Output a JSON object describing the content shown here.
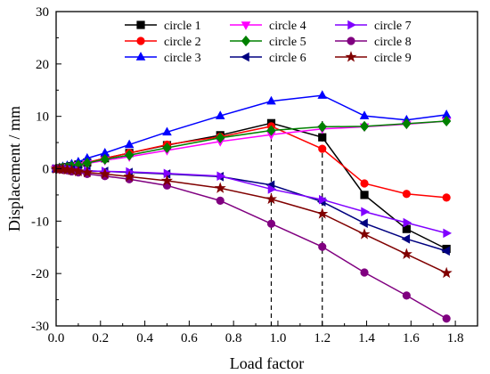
{
  "chart_data": {
    "type": "line",
    "title": "",
    "xlabel": "Load factor",
    "ylabel": "Displacement / mm",
    "xlim": [
      0.0,
      1.9
    ],
    "ylim": [
      -30,
      30
    ],
    "xticks": [
      "0.0",
      "0.2",
      "0.4",
      "0.6",
      "0.8",
      "1.0",
      "1.2",
      "1.4",
      "1.6",
      "1.8"
    ],
    "yticks": [
      "-30",
      "-20",
      "-10",
      "0",
      "10",
      "20",
      "30"
    ],
    "grid": false,
    "legend_position": "top-center",
    "reference_lines": [
      0.97,
      1.2
    ],
    "series": [
      {
        "name": "circle 1",
        "color": "#000000",
        "marker": "square",
        "x": [
          0,
          0.015,
          0.03,
          0.05,
          0.07,
          0.1,
          0.14,
          0.22,
          0.33,
          0.5,
          0.74,
          0.97,
          1.2,
          1.39,
          1.58,
          1.76
        ],
        "y": [
          0,
          0.1,
          0.2,
          0.3,
          0.5,
          0.8,
          1.2,
          2.0,
          3.0,
          4.5,
          6.4,
          8.7,
          6.0,
          -5.0,
          -11.5,
          -15.3
        ]
      },
      {
        "name": "circle 2",
        "color": "#ff0000",
        "marker": "circle",
        "x": [
          0,
          0.015,
          0.03,
          0.05,
          0.07,
          0.1,
          0.14,
          0.22,
          0.33,
          0.5,
          0.74,
          0.97,
          1.2,
          1.39,
          1.58,
          1.76
        ],
        "y": [
          0,
          0.1,
          0.2,
          0.3,
          0.5,
          0.8,
          1.2,
          2.0,
          3.0,
          4.6,
          6.1,
          8.1,
          3.8,
          -2.8,
          -4.8,
          -5.5
        ]
      },
      {
        "name": "circle 3",
        "color": "#0000ff",
        "marker": "triangle-up",
        "x": [
          0,
          0.015,
          0.03,
          0.05,
          0.07,
          0.1,
          0.14,
          0.22,
          0.33,
          0.5,
          0.74,
          0.97,
          1.2,
          1.39,
          1.58,
          1.76
        ],
        "y": [
          0,
          0.2,
          0.4,
          0.6,
          0.9,
          1.3,
          2.0,
          3.0,
          4.6,
          7.0,
          10.1,
          12.9,
          14.0,
          10.1,
          9.3,
          10.3
        ]
      },
      {
        "name": "circle 4",
        "color": "#ff00ff",
        "marker": "triangle-down",
        "x": [
          0,
          0.015,
          0.03,
          0.05,
          0.07,
          0.1,
          0.14,
          0.22,
          0.33,
          0.5,
          0.74,
          0.97,
          1.2,
          1.39,
          1.58,
          1.76
        ],
        "y": [
          0,
          0.1,
          0.2,
          0.3,
          0.4,
          0.6,
          1.0,
          1.6,
          2.3,
          3.5,
          5.2,
          6.5,
          7.6,
          8.0,
          8.5,
          9.1
        ]
      },
      {
        "name": "circle 5",
        "color": "#008000",
        "marker": "diamond",
        "x": [
          0,
          0.015,
          0.03,
          0.05,
          0.07,
          0.1,
          0.14,
          0.22,
          0.33,
          0.5,
          0.74,
          0.97,
          1.2,
          1.39,
          1.58,
          1.76
        ],
        "y": [
          0,
          0.1,
          0.2,
          0.3,
          0.5,
          0.7,
          1.1,
          1.8,
          2.6,
          4.0,
          5.9,
          7.3,
          8.0,
          8.1,
          8.6,
          9.1
        ]
      },
      {
        "name": "circle 6",
        "color": "#000080",
        "marker": "triangle-left",
        "x": [
          0,
          0.015,
          0.03,
          0.05,
          0.07,
          0.1,
          0.14,
          0.22,
          0.33,
          0.5,
          0.74,
          0.97,
          1.2,
          1.39,
          1.58,
          1.76
        ],
        "y": [
          0,
          -0.05,
          -0.1,
          -0.1,
          -0.2,
          -0.3,
          -0.4,
          -0.5,
          -0.7,
          -1.0,
          -1.5,
          -3.1,
          -6.3,
          -10.4,
          -13.4,
          -15.7
        ]
      },
      {
        "name": "circle 7",
        "color": "#8000ff",
        "marker": "triangle-right",
        "x": [
          0,
          0.015,
          0.03,
          0.05,
          0.07,
          0.1,
          0.14,
          0.22,
          0.33,
          0.5,
          0.74,
          0.97,
          1.2,
          1.39,
          1.58,
          1.76
        ],
        "y": [
          0,
          -0.05,
          -0.1,
          -0.1,
          -0.2,
          -0.3,
          -0.4,
          -0.5,
          -0.6,
          -0.9,
          -1.4,
          -3.9,
          -5.9,
          -8.2,
          -10.3,
          -12.3
        ]
      },
      {
        "name": "circle 8",
        "color": "#800080",
        "marker": "circle",
        "x": [
          0,
          0.015,
          0.03,
          0.05,
          0.07,
          0.1,
          0.14,
          0.22,
          0.33,
          0.5,
          0.74,
          0.97,
          1.2,
          1.39,
          1.58,
          1.76
        ],
        "y": [
          0,
          -0.1,
          -0.2,
          -0.3,
          -0.5,
          -0.7,
          -1.0,
          -1.4,
          -2.0,
          -3.2,
          -6.1,
          -10.5,
          -14.9,
          -19.8,
          -24.2,
          -28.6
        ]
      },
      {
        "name": "circle 9",
        "color": "#800000",
        "marker": "star",
        "x": [
          0,
          0.015,
          0.03,
          0.05,
          0.07,
          0.1,
          0.14,
          0.22,
          0.33,
          0.5,
          0.74,
          0.97,
          1.2,
          1.39,
          1.58,
          1.76
        ],
        "y": [
          0,
          -0.1,
          -0.1,
          -0.2,
          -0.3,
          -0.5,
          -0.7,
          -1.0,
          -1.5,
          -2.3,
          -3.7,
          -5.8,
          -8.6,
          -12.5,
          -16.3,
          -19.9
        ]
      }
    ]
  }
}
